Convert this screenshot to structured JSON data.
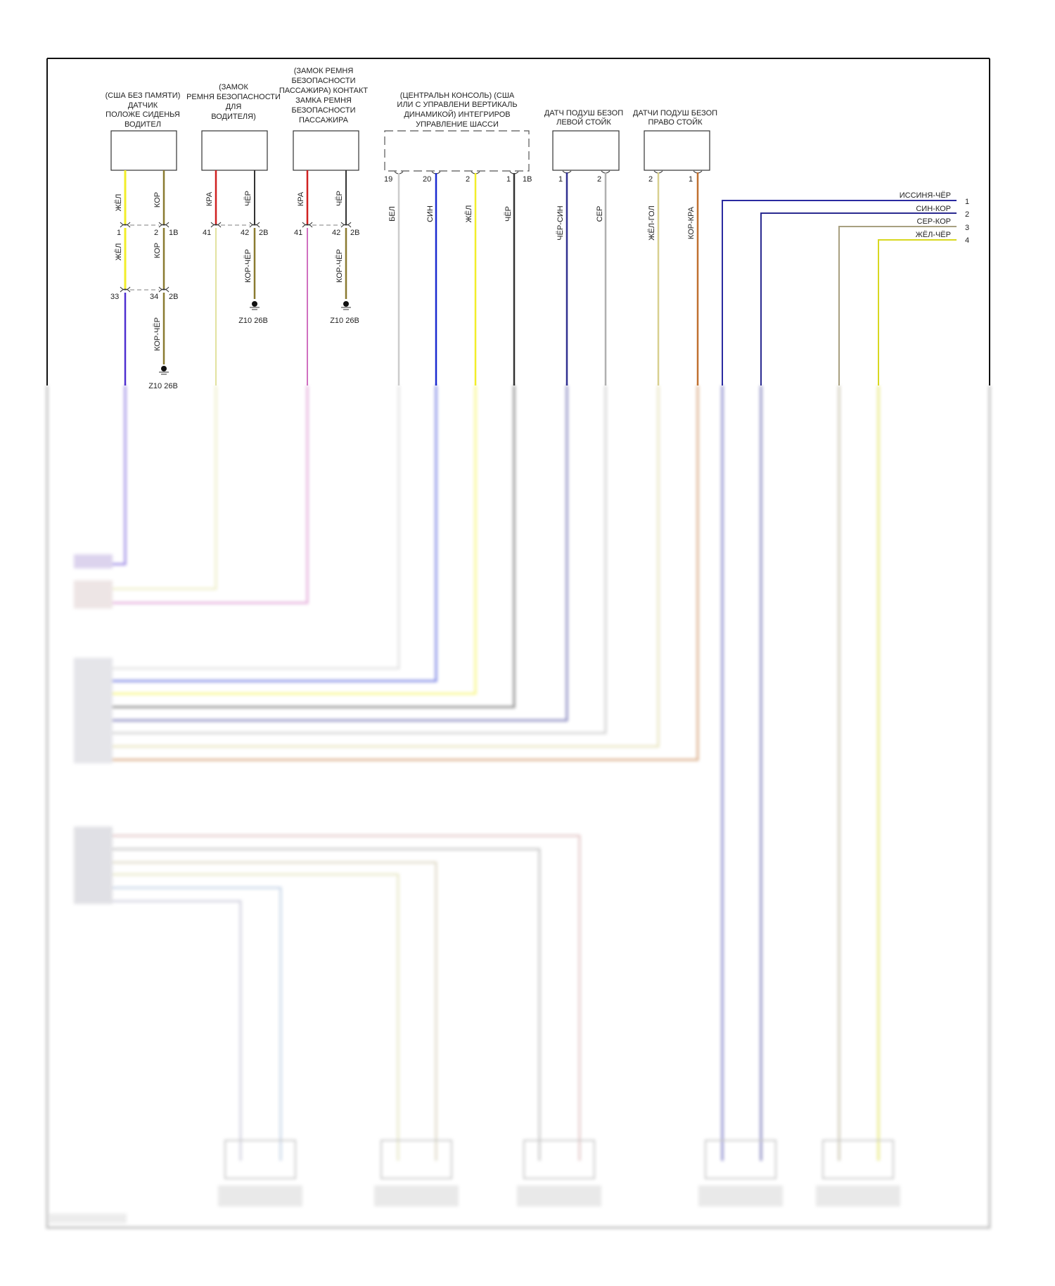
{
  "components": [
    {
      "title": [
        "(США БЕЗ ПАМЯТИ)",
        "ДАТЧИК",
        "ПОЛОЖЕ СИДЕНЬЯ",
        "ВОДИТЕЛ"
      ]
    },
    {
      "title": [
        "(ЗАМОК",
        "РЕМНЯ БЕЗОПАСНОСТИ",
        "ДЛЯ",
        "ВОДИТЕЛЯ)"
      ]
    },
    {
      "title": [
        "(ЗАМОК РЕМНЯ",
        "БЕЗОПАСНОСТИ",
        "ПАССАЖИРА) КОНТАКТ",
        "ЗАМКА РЕМНЯ",
        "БЕЗОПАСНОСТИ",
        "ПАССАЖИРА"
      ]
    },
    {
      "title": [
        "(ЦЕНТРАЛЬН КОНСОЛЬ) (США",
        "ИЛИ С УПРАВЛЕНИ ВЕРТИКАЛЬ",
        "ДИНАМИКОЙ) ИНТЕГРИРОВ",
        "УПРАВЛЕНИЕ ШАССИ"
      ]
    },
    {
      "title": [
        "ДАТЧ ПОДУШ БЕЗОП",
        "ЛЕВОЙ СТОЙК"
      ]
    },
    {
      "title": [
        "ДАТЧИ ПОДУШ БЕЗОП",
        "ПРАВО СТОЙК"
      ]
    }
  ],
  "wire_labels": {
    "c1": [
      "ЖЁЛ",
      "КОР",
      "ЖЁЛ",
      "КОР",
      "КОР-ЧЁР"
    ],
    "c2": [
      "КРА",
      "ЧЁР",
      "КОР-ЧЁР"
    ],
    "c3": [
      "КРА",
      "ЧЁР",
      "КОР-ЧЁР"
    ],
    "c4": [
      "БЕЛ",
      "СИН",
      "ЖЁЛ",
      "ЧЁР"
    ],
    "c5": [
      "ЧЁР-СИН",
      "СЕР"
    ],
    "c6": [
      "ЖЁЛ-ГОЛ",
      "КОР-КРА"
    ]
  },
  "pins": {
    "c1": [
      "1",
      "2",
      "1B",
      "33",
      "34",
      "2B"
    ],
    "c2": [
      "41",
      "42",
      "2B"
    ],
    "c3": [
      "41",
      "42",
      "2B"
    ],
    "c4": [
      "19",
      "20",
      "2",
      "1",
      "1B"
    ],
    "c5": [
      "1",
      "2"
    ],
    "c6": [
      "2",
      "1"
    ]
  },
  "grounds": [
    "Z10 26B",
    "Z10 26B",
    "Z10 26B"
  ],
  "right_connector": [
    {
      "label": "ИССИНЯ-ЧЁР",
      "pin": "1",
      "color": "#2a2aa0"
    },
    {
      "label": "СИН-КОР",
      "pin": "2",
      "color": "#2a2a90"
    },
    {
      "label": "СЕР-КОР",
      "pin": "3",
      "color": "#a8a080"
    },
    {
      "label": "ЖЁЛ-ЧЁР",
      "pin": "4",
      "color": "#d8d820"
    }
  ],
  "colors": {
    "yellow": "#f2ee2a",
    "brown": "#8a7a30",
    "red": "#d02020",
    "black": "#333333",
    "white": "#cccccc",
    "blue": "#1a2ad0",
    "purple": "#5030d0",
    "pink": "#d070c0",
    "pale_yellow": "#e2e2a0",
    "navy": "#303090",
    "gray": "#b0b0b0",
    "orange": "#c07030",
    "yellow_tan": "#d8d090"
  }
}
